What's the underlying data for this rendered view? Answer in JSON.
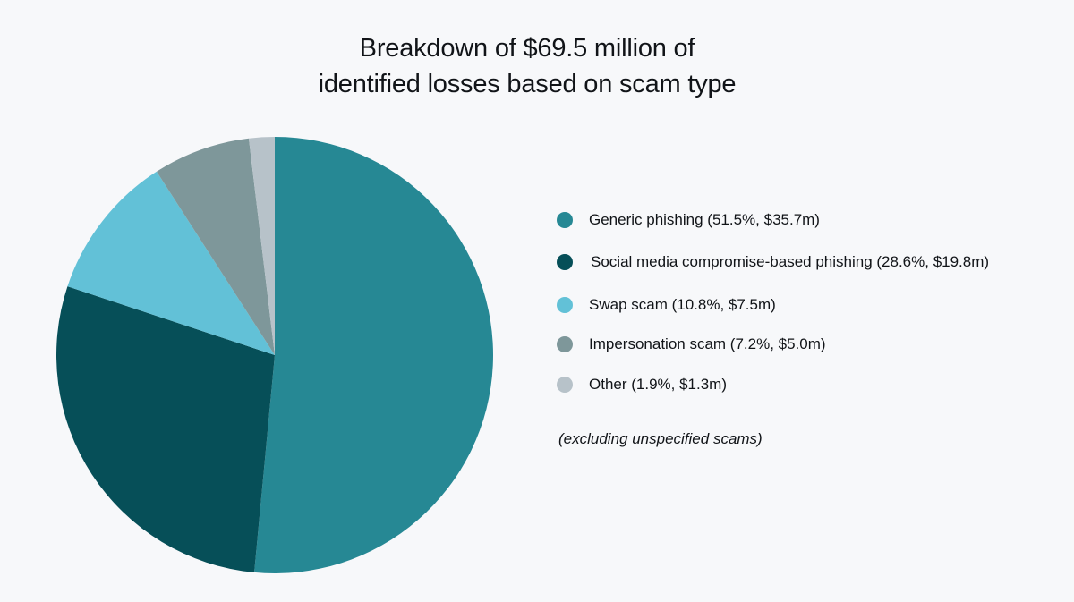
{
  "chart_data": {
    "type": "pie",
    "title_lines": [
      "Breakdown of $69.5 million of",
      "identified losses based on scam type"
    ],
    "total": "$69.5 million",
    "slices": [
      {
        "name": "Generic phishing",
        "percent": 51.5,
        "value_m": 35.7,
        "label": "Generic phishing (51.5%, $35.7m)",
        "color": "#268894"
      },
      {
        "name": "Social media compromise-based phishing",
        "percent": 28.6,
        "value_m": 19.8,
        "label": "Social media compromise-based phishing (28.6%, $19.8m)",
        "color": "#064f58"
      },
      {
        "name": "Swap scam",
        "percent": 10.8,
        "value_m": 7.5,
        "label": "Swap scam (10.8%, $7.5m)",
        "color": "#62c1d7"
      },
      {
        "name": "Impersonation scam",
        "percent": 7.2,
        "value_m": 5.0,
        "label": "Impersonation scam (7.2%, $5.0m)",
        "color": "#7e979a"
      },
      {
        "name": "Other",
        "percent": 1.9,
        "value_m": 1.3,
        "label": "Other (1.9%, $1.3m)",
        "color": "#b7c2c9"
      }
    ],
    "legend_position": "right",
    "footnote": "(excluding unspecified scams)"
  }
}
